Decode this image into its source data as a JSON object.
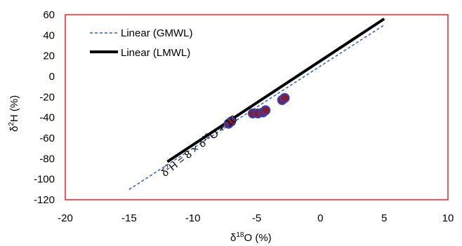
{
  "chart_data": {
    "type": "scatter",
    "title": "",
    "xlabel": {
      "base": "δ",
      "sup": "18",
      "rest": "O (%)"
    },
    "ylabel": {
      "base": "δ",
      "sup": "2",
      "rest": "H (%)"
    },
    "xlim": [
      -20,
      10
    ],
    "ylim": [
      -120,
      60
    ],
    "x_ticks": [
      -20,
      -15,
      -10,
      -5,
      0,
      5,
      10
    ],
    "y_ticks": [
      -120,
      -100,
      -80,
      -60,
      -40,
      -20,
      0,
      20,
      40,
      60
    ],
    "grid": false,
    "plot_border_color": "#e8202a",
    "legend_position": "top-left",
    "series": [
      {
        "name": "Linear (GMWL)",
        "kind": "line",
        "style": "dashed",
        "color": "#2e62b8",
        "x": [
          -15,
          5
        ],
        "y": [
          -110,
          50
        ]
      },
      {
        "name": "Linear (LMWL)",
        "kind": "line",
        "style": "solid",
        "color": "#000000",
        "x": [
          -12,
          5
        ],
        "y": [
          -83,
          56
        ]
      },
      {
        "name": "",
        "kind": "scatter",
        "marker_fill": "#8b1a2b",
        "marker_edge": "#3a3fb0",
        "x": [
          -7.2,
          -7.0,
          -5.3,
          -4.9,
          -4.5,
          -4.3,
          -3.0,
          -2.8
        ],
        "y": [
          -46,
          -44,
          -36,
          -36,
          -35,
          -33,
          -23,
          -21
        ]
      }
    ],
    "annotation": {
      "parts": [
        "δ",
        "2",
        "H = 8 × δ",
        "18",
        "O + 10"
      ],
      "x": -12.2,
      "y": -98,
      "angle_deg": -38
    }
  }
}
